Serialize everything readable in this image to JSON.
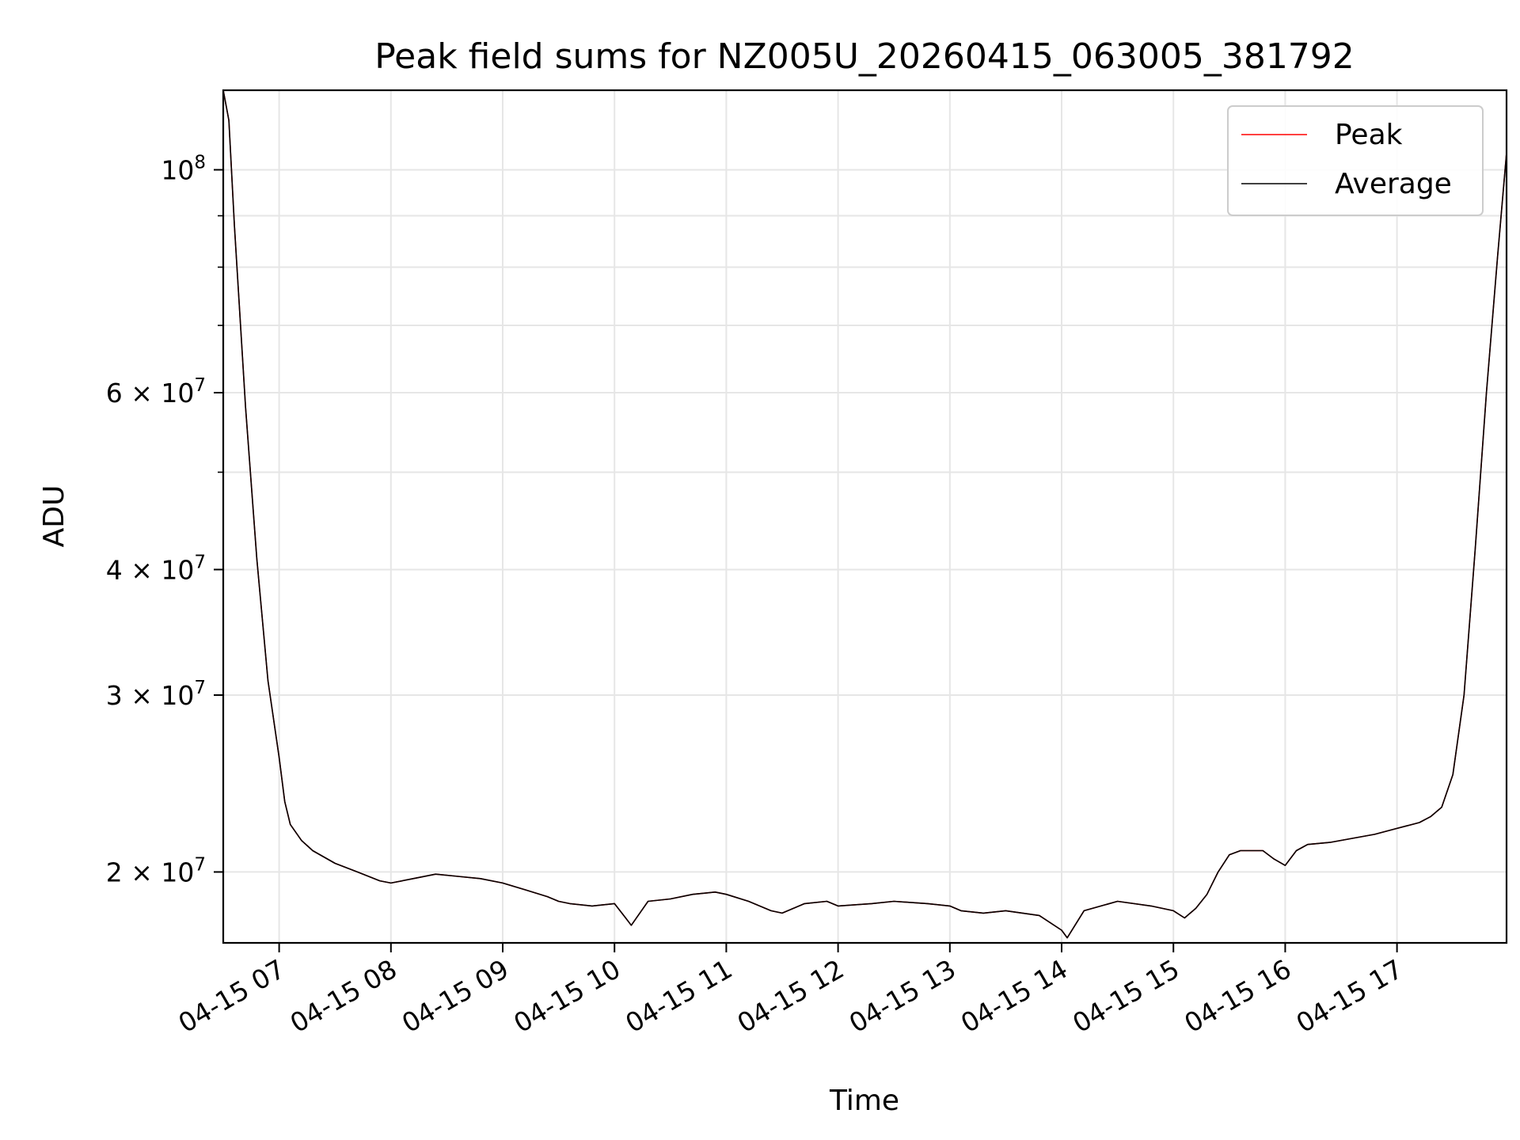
{
  "chart_data": {
    "type": "line",
    "title": "Peak field sums for NZ005U_20260415_063005_381792",
    "xlabel": "Time",
    "ylabel": "ADU",
    "yscale": "log",
    "xlim": [
      6.5,
      17.98
    ],
    "ylim": [
      17000000,
      120000000
    ],
    "grid": true,
    "legend_position": "top-right",
    "x_ticks": [
      {
        "value": 7,
        "label": "04-15 07"
      },
      {
        "value": 8,
        "label": "04-15 08"
      },
      {
        "value": 9,
        "label": "04-15 09"
      },
      {
        "value": 10,
        "label": "04-15 10"
      },
      {
        "value": 11,
        "label": "04-15 11"
      },
      {
        "value": 12,
        "label": "04-15 12"
      },
      {
        "value": 13,
        "label": "04-15 13"
      },
      {
        "value": 14,
        "label": "04-15 14"
      },
      {
        "value": 15,
        "label": "04-15 15"
      },
      {
        "value": 16,
        "label": "04-15 16"
      },
      {
        "value": 17,
        "label": "04-15 17"
      }
    ],
    "y_ticks": [
      {
        "value": 20000000,
        "base": "2 × 10",
        "exp": "7"
      },
      {
        "value": 30000000,
        "base": "3 × 10",
        "exp": "7"
      },
      {
        "value": 40000000,
        "base": "4 × 10",
        "exp": "7"
      },
      {
        "value": 60000000,
        "base": "6 × 10",
        "exp": "7"
      },
      {
        "value": 100000000,
        "base": "10",
        "exp": "8"
      }
    ],
    "y_minor_ticks": [
      50000000,
      70000000,
      80000000,
      90000000
    ],
    "series": [
      {
        "name": "Peak",
        "color": "#ff0000",
        "x": [
          6.5,
          6.55,
          6.6,
          6.7,
          6.8,
          6.9,
          7.0,
          7.05,
          7.1,
          7.2,
          7.3,
          7.5,
          7.7,
          7.9,
          8.0,
          8.2,
          8.4,
          8.6,
          8.8,
          9.0,
          9.2,
          9.4,
          9.5,
          9.6,
          9.8,
          10.0,
          10.1,
          10.15,
          10.3,
          10.5,
          10.7,
          10.9,
          11.0,
          11.2,
          11.4,
          11.5,
          11.7,
          11.9,
          12.0,
          12.3,
          12.5,
          12.8,
          13.0,
          13.1,
          13.3,
          13.5,
          13.8,
          14.0,
          14.05,
          14.2,
          14.5,
          14.8,
          15.0,
          15.1,
          15.2,
          15.3,
          15.4,
          15.5,
          15.6,
          15.8,
          15.9,
          16.0,
          16.1,
          16.2,
          16.4,
          16.6,
          16.8,
          17.0,
          17.2,
          17.3,
          17.4,
          17.5,
          17.6,
          17.7,
          17.8,
          17.9,
          17.98
        ],
        "y": [
          120000000,
          112000000,
          88000000,
          58000000,
          41000000,
          31000000,
          26000000,
          23500000,
          22300000,
          21500000,
          21000000,
          20400000,
          20000000,
          19600000,
          19500000,
          19700000,
          19900000,
          19800000,
          19700000,
          19500000,
          19200000,
          18900000,
          18700000,
          18600000,
          18500000,
          18600000,
          18000000,
          17700000,
          18700000,
          18800000,
          19000000,
          19100000,
          19000000,
          18700000,
          18300000,
          18200000,
          18600000,
          18700000,
          18500000,
          18600000,
          18700000,
          18600000,
          18500000,
          18300000,
          18200000,
          18300000,
          18100000,
          17500000,
          17200000,
          18300000,
          18700000,
          18500000,
          18300000,
          18000000,
          18400000,
          19000000,
          20000000,
          20800000,
          21000000,
          21000000,
          20600000,
          20300000,
          21000000,
          21300000,
          21400000,
          21600000,
          21800000,
          22100000,
          22400000,
          22700000,
          23200000,
          25000000,
          30000000,
          42000000,
          60000000,
          82000000,
          104000000
        ]
      },
      {
        "name": "Average",
        "color": "#000000",
        "x": [
          6.5,
          6.55,
          6.6,
          6.7,
          6.8,
          6.9,
          7.0,
          7.05,
          7.1,
          7.2,
          7.3,
          7.5,
          7.7,
          7.9,
          8.0,
          8.2,
          8.4,
          8.6,
          8.8,
          9.0,
          9.2,
          9.4,
          9.5,
          9.6,
          9.8,
          10.0,
          10.1,
          10.15,
          10.3,
          10.5,
          10.7,
          10.9,
          11.0,
          11.2,
          11.4,
          11.5,
          11.7,
          11.9,
          12.0,
          12.3,
          12.5,
          12.8,
          13.0,
          13.1,
          13.3,
          13.5,
          13.8,
          14.0,
          14.05,
          14.2,
          14.5,
          14.8,
          15.0,
          15.1,
          15.2,
          15.3,
          15.4,
          15.5,
          15.6,
          15.8,
          15.9,
          16.0,
          16.1,
          16.2,
          16.4,
          16.6,
          16.8,
          17.0,
          17.2,
          17.3,
          17.4,
          17.5,
          17.6,
          17.7,
          17.8,
          17.9,
          17.98
        ],
        "y": [
          120000000,
          112000000,
          88000000,
          58000000,
          41000000,
          31000000,
          26000000,
          23500000,
          22300000,
          21500000,
          21000000,
          20400000,
          20000000,
          19600000,
          19500000,
          19700000,
          19900000,
          19800000,
          19700000,
          19500000,
          19200000,
          18900000,
          18700000,
          18600000,
          18500000,
          18600000,
          18000000,
          17700000,
          18700000,
          18800000,
          19000000,
          19100000,
          19000000,
          18700000,
          18300000,
          18200000,
          18600000,
          18700000,
          18500000,
          18600000,
          18700000,
          18600000,
          18500000,
          18300000,
          18200000,
          18300000,
          18100000,
          17500000,
          17200000,
          18300000,
          18700000,
          18500000,
          18300000,
          18000000,
          18400000,
          19000000,
          20000000,
          20800000,
          21000000,
          21000000,
          20600000,
          20300000,
          21000000,
          21300000,
          21400000,
          21600000,
          21800000,
          22100000,
          22400000,
          22700000,
          23200000,
          25000000,
          30000000,
          42000000,
          60000000,
          82000000,
          104000000
        ]
      }
    ],
    "legend": [
      {
        "label": "Peak",
        "color": "#ff0000"
      },
      {
        "label": "Average",
        "color": "#000000"
      }
    ]
  }
}
